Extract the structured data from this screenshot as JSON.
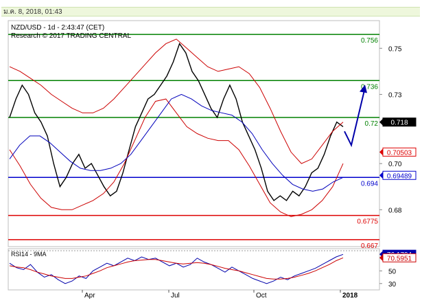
{
  "header": {
    "datetime": "ม.ค. 8, 2018, 01:43",
    "line1": "NZD/USD - 1d - 2:43:47 (CET)",
    "line2": "Research © 2017 TRADING CENTRAL"
  },
  "chart_data": [
    {
      "type": "line",
      "title": "NZD/USD - 1d",
      "x_ticks": [
        "Apr",
        "Jul",
        "Oct",
        "2018"
      ],
      "y_ticks": [
        0.68,
        0.7,
        0.73,
        0.75
      ],
      "ylim": [
        0.664,
        0.762
      ],
      "series": [
        {
          "values": [
            0.72,
            0.728,
            0.734,
            0.73,
            0.722,
            0.718,
            0.712,
            0.7,
            0.69,
            0.694,
            0.7,
            0.704,
            0.698,
            0.7,
            0.695,
            0.69,
            0.686,
            0.688,
            0.696,
            0.706,
            0.716,
            0.722,
            0.728,
            0.73,
            0.734,
            0.738,
            0.744,
            0.752,
            0.748,
            0.74,
            0.736,
            0.73,
            0.724,
            0.72,
            0.728,
            0.734,
            0.728,
            0.718,
            0.712,
            0.706,
            0.698,
            0.688,
            0.684,
            0.686,
            0.684,
            0.688,
            0.686,
            0.69,
            0.696,
            0.698,
            0.704,
            0.712,
            0.718,
            0.716
          ]
        },
        {
          "values": [
            0.742,
            0.74,
            0.737,
            0.734,
            0.73,
            0.727,
            0.724,
            0.722,
            0.722,
            0.724,
            0.728,
            0.733,
            0.738,
            0.743,
            0.748,
            0.752,
            0.754,
            0.75,
            0.746,
            0.742,
            0.74,
            0.741,
            0.742,
            0.739,
            0.733,
            0.724,
            0.714,
            0.705,
            0.7,
            0.702,
            0.708,
            0.714,
            0.718
          ]
        },
        {
          "values": [
            0.706,
            0.699,
            0.691,
            0.685,
            0.681,
            0.68,
            0.68,
            0.682,
            0.684,
            0.687,
            0.692,
            0.7,
            0.71,
            0.72,
            0.727,
            0.728,
            0.722,
            0.716,
            0.713,
            0.711,
            0.71,
            0.71,
            0.706,
            0.699,
            0.691,
            0.683,
            0.679,
            0.677,
            0.678,
            0.68,
            0.684,
            0.69,
            0.7
          ]
        },
        {
          "values": [
            0.702,
            0.708,
            0.712,
            0.712,
            0.709,
            0.705,
            0.701,
            0.698,
            0.697,
            0.697,
            0.698,
            0.7,
            0.704,
            0.71,
            0.716,
            0.722,
            0.728,
            0.73,
            0.728,
            0.725,
            0.723,
            0.722,
            0.721,
            0.718,
            0.713,
            0.706,
            0.7,
            0.695,
            0.691,
            0.689,
            0.688,
            0.689,
            0.692,
            0.694
          ]
        }
      ],
      "levels": [
        {
          "value": 0.756,
          "label": "0.756",
          "color": "#008000"
        },
        {
          "value": 0.736,
          "label": "0.736",
          "color": "#008000"
        },
        {
          "value": 0.72,
          "label": "0.72",
          "color": "#008000"
        },
        {
          "value": 0.694,
          "label": "0.694",
          "color": "#0000cc"
        },
        {
          "value": 0.6775,
          "label": "0.6775",
          "color": "#dd0000"
        },
        {
          "value": 0.667,
          "label": "0.667",
          "color": "#dd0000"
        }
      ],
      "badges": [
        {
          "value": 0.718,
          "label": "0.718",
          "color": "#000000"
        },
        {
          "value": 0.705,
          "label": "0.70503",
          "color": "#dd0000"
        },
        {
          "value": 0.6949,
          "label": "0.69489",
          "color": "#0000cc"
        }
      ],
      "projection": [
        [
          0.714,
          0.708
        ],
        [
          0.708,
          0.733
        ]
      ]
    },
    {
      "type": "line",
      "title": "RSI14 - 9MA",
      "y_ticks": [
        30,
        50
      ],
      "ylim": [
        20,
        85
      ],
      "series": [
        {
          "values": [
            62,
            55,
            52,
            60,
            48,
            40,
            44,
            36,
            30,
            34,
            42,
            38,
            50,
            56,
            62,
            58,
            64,
            70,
            66,
            72,
            68,
            70,
            64,
            58,
            62,
            56,
            60,
            70,
            64,
            60,
            54,
            48,
            56,
            50,
            44,
            38,
            34,
            30,
            34,
            40,
            36,
            42,
            46,
            50,
            54,
            60,
            66,
            72,
            76
          ]
        },
        {
          "values": [
            58,
            56,
            55,
            52,
            48,
            45,
            42,
            40,
            38,
            38,
            40,
            42,
            46,
            50,
            55,
            58,
            61,
            64,
            66,
            67,
            68,
            68,
            66,
            64,
            62,
            61,
            62,
            63,
            62,
            60,
            57,
            54,
            52,
            50,
            47,
            44,
            41,
            38,
            37,
            37,
            38,
            40,
            43,
            46,
            50,
            55,
            60,
            66,
            70.6
          ]
        }
      ],
      "badges": [
        {
          "value": 76.1794,
          "label": "76.1794",
          "color": "#0000aa"
        },
        {
          "value": 70.5951,
          "label": "70.5951",
          "color": "#cc0000"
        }
      ]
    }
  ]
}
